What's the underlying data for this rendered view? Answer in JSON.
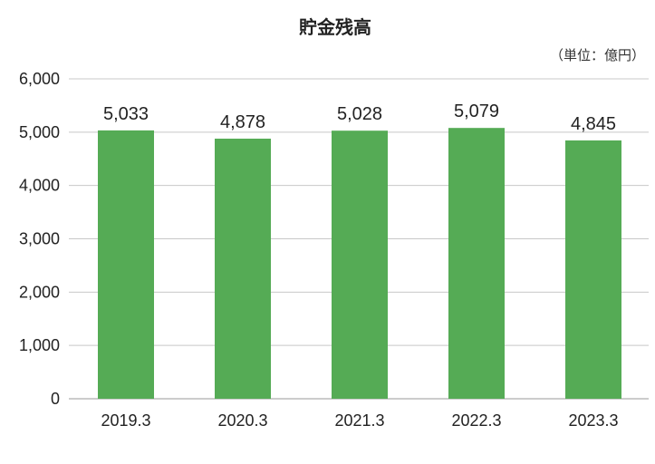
{
  "chart_data": {
    "type": "bar",
    "title": "貯金残高",
    "unit_note": "（単位：億円）",
    "categories": [
      "2019.3",
      "2020.3",
      "2021.3",
      "2022.3",
      "2023.3"
    ],
    "values": [
      5033,
      4878,
      5028,
      5079,
      4845
    ],
    "value_labels": [
      "5,033",
      "4,878",
      "5,028",
      "5,079",
      "4,845"
    ],
    "ylim": [
      0,
      6000
    ],
    "yticks": [
      0,
      1000,
      2000,
      3000,
      4000,
      5000,
      6000
    ],
    "ytick_labels": [
      "0",
      "1,000",
      "2,000",
      "3,000",
      "4,000",
      "5,000",
      "6,000"
    ],
    "xlabel": "",
    "ylabel": "",
    "grid": true,
    "legend": "none",
    "bar_color": "#55ab55"
  }
}
